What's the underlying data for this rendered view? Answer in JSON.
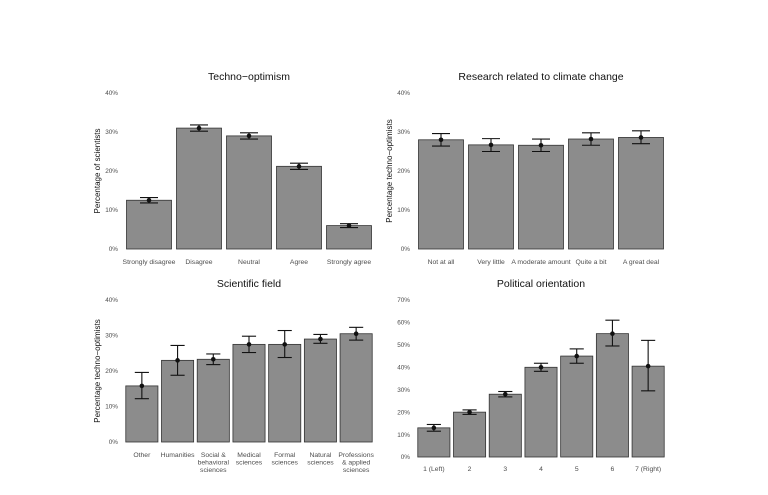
{
  "chart_data": [
    {
      "type": "bar",
      "title": "Techno−optimism",
      "xlabel": "",
      "ylabel": "Percentage of scientists",
      "ylim": [
        0,
        40
      ],
      "yticks": [
        "0%",
        "10%",
        "20%",
        "30%",
        "40%"
      ],
      "categories": [
        "Strongly disagree",
        "Disagree",
        "Neutral",
        "Agree",
        "Strongly agree"
      ],
      "values": [
        12.5,
        31.0,
        29.0,
        21.2,
        6.0
      ],
      "error_low": [
        11.8,
        30.2,
        28.2,
        20.4,
        5.5
      ],
      "error_high": [
        13.2,
        31.8,
        29.8,
        22.0,
        6.5
      ]
    },
    {
      "type": "bar",
      "title": "Research related to climate change",
      "xlabel": "",
      "ylabel": "Percentage techno−optimists",
      "ylim": [
        0,
        40
      ],
      "yticks": [
        "0%",
        "10%",
        "20%",
        "30%",
        "40%"
      ],
      "categories": [
        "Not at all",
        "Very little",
        "A moderate amount",
        "Quite a bit",
        "A great deal"
      ],
      "values": [
        28.0,
        26.7,
        26.6,
        28.2,
        28.6
      ],
      "error_low": [
        26.4,
        25.0,
        25.0,
        26.6,
        27.0
      ],
      "error_high": [
        29.6,
        28.3,
        28.2,
        29.8,
        30.3
      ]
    },
    {
      "type": "bar",
      "title": "Scientific field",
      "xlabel": "",
      "ylabel": "Percentage techno−optimists",
      "ylim": [
        0,
        40
      ],
      "yticks": [
        "0%",
        "10%",
        "20%",
        "30%",
        "40%"
      ],
      "categories": [
        "Other",
        "Humanities",
        "Social & behavioral sciences",
        "Medical sciences",
        "Formal sciences",
        "Natural sciences",
        "Professions & applied sciences"
      ],
      "values": [
        15.8,
        23.0,
        23.3,
        27.5,
        27.5,
        29.0,
        30.5
      ],
      "error_low": [
        12.2,
        18.8,
        21.8,
        25.2,
        23.8,
        27.8,
        28.7
      ],
      "error_high": [
        19.6,
        27.2,
        24.8,
        29.8,
        31.4,
        30.3,
        32.3
      ]
    },
    {
      "type": "bar",
      "title": "Political orientation",
      "xlabel": "",
      "ylabel": "",
      "ylim": [
        0,
        70
      ],
      "yticks": [
        "0%",
        "10%",
        "20%",
        "30%",
        "40%",
        "50%",
        "60%",
        "70%"
      ],
      "categories": [
        "1 (Left)",
        "2",
        "3",
        "4",
        "5",
        "6",
        "7 (Right)"
      ],
      "values": [
        13.0,
        20.0,
        28.0,
        40.0,
        45.0,
        55.0,
        40.5
      ],
      "error_low": [
        11.5,
        19.0,
        26.8,
        38.2,
        41.8,
        49.5,
        29.5
      ],
      "error_high": [
        14.5,
        21.0,
        29.2,
        41.8,
        48.2,
        61.0,
        52.0
      ]
    }
  ]
}
